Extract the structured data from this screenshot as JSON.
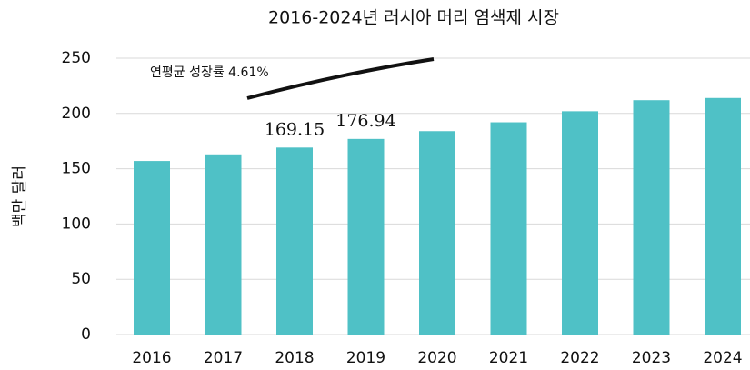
{
  "chart_data": {
    "type": "bar",
    "title": "2016-2024년 러시아 머리 염색제 시장",
    "y_label": "백만 달러",
    "annotation": "연평균 성장률 4.61%",
    "categories": [
      "2016",
      "2017",
      "2018",
      "2019",
      "2020",
      "2021",
      "2022",
      "2023",
      "2024"
    ],
    "values": [
      157,
      163,
      169.15,
      176.94,
      184,
      192,
      202,
      212,
      214
    ],
    "value_labels": [
      null,
      null,
      "169.15",
      "176.94",
      null,
      null,
      null,
      null,
      null
    ],
    "color": "#4fc1c6",
    "ylim": [
      0,
      250
    ],
    "yticks": [
      0,
      50,
      100,
      150,
      200,
      250
    ],
    "grid": true
  }
}
